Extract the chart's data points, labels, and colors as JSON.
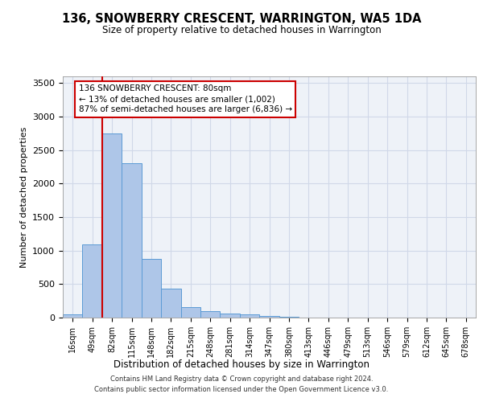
{
  "title": "136, SNOWBERRY CRESCENT, WARRINGTON, WA5 1DA",
  "subtitle": "Size of property relative to detached houses in Warrington",
  "xlabel": "Distribution of detached houses by size in Warrington",
  "ylabel": "Number of detached properties",
  "categories": [
    "16sqm",
    "49sqm",
    "82sqm",
    "115sqm",
    "148sqm",
    "182sqm",
    "215sqm",
    "248sqm",
    "281sqm",
    "314sqm",
    "347sqm",
    "380sqm",
    "413sqm",
    "446sqm",
    "479sqm",
    "513sqm",
    "546sqm",
    "579sqm",
    "612sqm",
    "645sqm",
    "678sqm"
  ],
  "values": [
    50,
    1090,
    2750,
    2310,
    880,
    430,
    160,
    95,
    60,
    45,
    25,
    10,
    5,
    2,
    1,
    0,
    0,
    0,
    0,
    0,
    0
  ],
  "bar_color": "#aec6e8",
  "bar_edgecolor": "#5b9bd5",
  "grid_color": "#d0d8e8",
  "background_color": "#eef2f8",
  "vline_color": "#cc0000",
  "vline_x": 1.5,
  "annotation_text": "136 SNOWBERRY CRESCENT: 80sqm\n← 13% of detached houses are smaller (1,002)\n87% of semi-detached houses are larger (6,836) →",
  "footer_line1": "Contains HM Land Registry data © Crown copyright and database right 2024.",
  "footer_line2": "Contains public sector information licensed under the Open Government Licence v3.0.",
  "ylim": [
    0,
    3600
  ],
  "yticks": [
    0,
    500,
    1000,
    1500,
    2000,
    2500,
    3000,
    3500
  ]
}
